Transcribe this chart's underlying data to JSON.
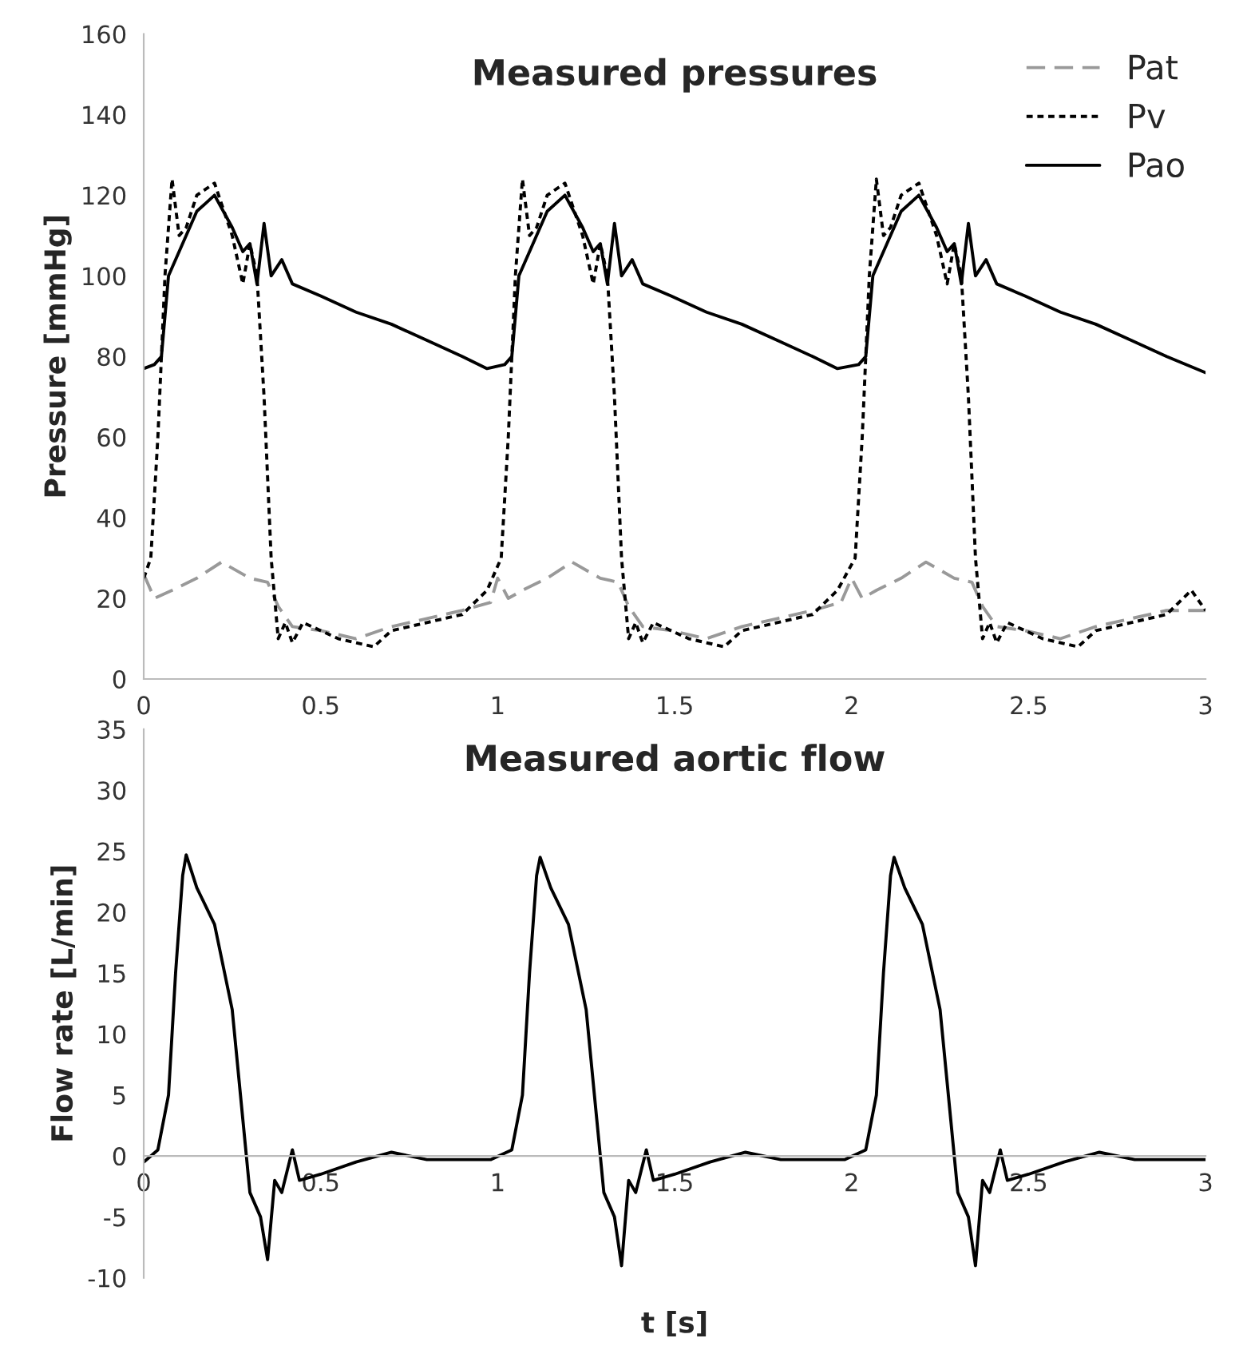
{
  "chart_data": [
    {
      "type": "line",
      "title": "Measured pressures",
      "ylabel": "Pressure [mmHg]",
      "xlim": [
        0,
        3
      ],
      "xticks": [
        0,
        0.5,
        1,
        1.5,
        2,
        2.5,
        3
      ],
      "ylim": [
        0,
        160
      ],
      "yticks": [
        0,
        20,
        40,
        60,
        80,
        100,
        120,
        140,
        160
      ],
      "grid": false,
      "legend": "top right",
      "series": [
        {
          "name": "Pat",
          "color": "#999999",
          "line_style": "dashed",
          "x": [
            0,
            0.03,
            0.08,
            0.15,
            0.22,
            0.3,
            0.35,
            0.38,
            0.42,
            0.5,
            0.6,
            0.7,
            0.8,
            0.9,
            0.98,
            1.0,
            1.03,
            1.07,
            1.14,
            1.21,
            1.29,
            1.34,
            1.37,
            1.41,
            1.49,
            1.59,
            1.69,
            1.79,
            1.89,
            1.97,
            2.0,
            2.03,
            2.07,
            2.14,
            2.21,
            2.29,
            2.34,
            2.37,
            2.41,
            2.49,
            2.59,
            2.69,
            2.79,
            2.89,
            3.0
          ],
          "values": [
            26,
            20,
            22,
            25,
            29,
            25,
            24,
            18,
            13,
            12,
            10,
            13,
            15,
            17,
            19,
            25,
            20,
            22,
            25,
            29,
            25,
            24,
            18,
            13,
            12,
            10,
            13,
            15,
            17,
            19,
            25,
            20,
            22,
            25,
            29,
            25,
            24,
            18,
            13,
            12,
            10,
            13,
            15,
            17,
            17
          ]
        },
        {
          "name": "Pv",
          "color": "#000000",
          "line_style": "dotted",
          "x": [
            0,
            0.02,
            0.04,
            0.06,
            0.08,
            0.1,
            0.12,
            0.15,
            0.2,
            0.25,
            0.28,
            0.3,
            0.32,
            0.34,
            0.36,
            0.38,
            0.4,
            0.42,
            0.45,
            0.5,
            0.55,
            0.65,
            0.7,
            0.8,
            0.9,
            0.97,
            1.01,
            1.03,
            1.05,
            1.07,
            1.09,
            1.11,
            1.14,
            1.19,
            1.24,
            1.27,
            1.29,
            1.31,
            1.33,
            1.35,
            1.37,
            1.39,
            1.41,
            1.44,
            1.49,
            1.54,
            1.64,
            1.69,
            1.79,
            1.89,
            1.96,
            2.01,
            2.03,
            2.05,
            2.07,
            2.09,
            2.11,
            2.14,
            2.19,
            2.24,
            2.27,
            2.29,
            2.31,
            2.33,
            2.35,
            2.37,
            2.39,
            2.41,
            2.44,
            2.49,
            2.54,
            2.64,
            2.69,
            2.79,
            2.89,
            2.96,
            3.0
          ],
          "values": [
            25,
            30,
            60,
            100,
            124,
            110,
            112,
            120,
            123,
            110,
            98,
            108,
            100,
            70,
            30,
            10,
            14,
            9,
            14,
            12,
            10,
            8,
            12,
            14,
            16,
            22,
            30,
            60,
            100,
            124,
            110,
            112,
            120,
            123,
            110,
            98,
            108,
            100,
            70,
            30,
            10,
            14,
            9,
            14,
            12,
            10,
            8,
            12,
            14,
            16,
            22,
            30,
            60,
            100,
            124,
            110,
            112,
            120,
            123,
            110,
            98,
            108,
            100,
            70,
            30,
            10,
            14,
            9,
            14,
            12,
            10,
            8,
            12,
            14,
            16,
            22,
            17
          ]
        },
        {
          "name": "Pao",
          "color": "#000000",
          "line_style": "solid",
          "x": [
            0,
            0.03,
            0.05,
            0.07,
            0.1,
            0.15,
            0.2,
            0.25,
            0.28,
            0.3,
            0.32,
            0.34,
            0.36,
            0.39,
            0.42,
            0.5,
            0.6,
            0.7,
            0.8,
            0.9,
            0.97,
            1.02,
            1.04,
            1.06,
            1.09,
            1.14,
            1.19,
            1.24,
            1.27,
            1.29,
            1.31,
            1.33,
            1.35,
            1.38,
            1.41,
            1.49,
            1.59,
            1.69,
            1.79,
            1.89,
            1.96,
            2.02,
            2.04,
            2.06,
            2.09,
            2.14,
            2.19,
            2.24,
            2.27,
            2.29,
            2.31,
            2.33,
            2.35,
            2.38,
            2.41,
            2.49,
            2.59,
            2.69,
            2.79,
            2.89,
            3.0
          ],
          "values": [
            77,
            78,
            80,
            100,
            106,
            116,
            120,
            112,
            106,
            108,
            98,
            113,
            100,
            104,
            98,
            95,
            91,
            88,
            84,
            80,
            77,
            78,
            80,
            100,
            106,
            116,
            120,
            112,
            106,
            108,
            98,
            113,
            100,
            104,
            98,
            95,
            91,
            88,
            84,
            80,
            77,
            78,
            80,
            100,
            106,
            116,
            120,
            112,
            106,
            108,
            98,
            113,
            100,
            104,
            98,
            95,
            91,
            88,
            84,
            80,
            76
          ]
        }
      ]
    },
    {
      "type": "line",
      "title": "Measured aortic flow",
      "xlabel": "t [s]",
      "ylabel": "Flow rate [L/min]",
      "xlim": [
        0,
        3
      ],
      "xticks": [
        0,
        0.5,
        1,
        1.5,
        2,
        2.5,
        3
      ],
      "ylim": [
        -10,
        35
      ],
      "yticks": [
        -10,
        -5,
        0,
        5,
        10,
        15,
        20,
        25,
        30,
        35
      ],
      "grid": false,
      "series": [
        {
          "color": "#000000",
          "line_style": "solid",
          "x": [
            0,
            0.04,
            0.07,
            0.09,
            0.11,
            0.12,
            0.15,
            0.2,
            0.25,
            0.28,
            0.3,
            0.33,
            0.35,
            0.37,
            0.39,
            0.42,
            0.44,
            0.5,
            0.6,
            0.7,
            0.8,
            0.9,
            0.98,
            1.04,
            1.07,
            1.09,
            1.11,
            1.12,
            1.15,
            1.2,
            1.25,
            1.28,
            1.3,
            1.33,
            1.35,
            1.37,
            1.39,
            1.42,
            1.44,
            1.5,
            1.6,
            1.7,
            1.8,
            1.9,
            1.98,
            2.04,
            2.07,
            2.09,
            2.11,
            2.12,
            2.15,
            2.2,
            2.25,
            2.28,
            2.3,
            2.33,
            2.35,
            2.37,
            2.39,
            2.42,
            2.44,
            2.5,
            2.6,
            2.7,
            2.8,
            2.9,
            3.0
          ],
          "values": [
            -0.5,
            0.5,
            5,
            15,
            23,
            24.7,
            22,
            19,
            12,
            3,
            -3,
            -5,
            -8.5,
            -2,
            -3,
            0.5,
            -2,
            -1.5,
            -0.5,
            0.3,
            -0.3,
            -0.3,
            -0.3,
            0.5,
            5,
            15,
            23,
            24.5,
            22,
            19,
            12,
            3,
            -3,
            -5,
            -9,
            -2,
            -3,
            0.5,
            -2,
            -1.5,
            -0.5,
            0.3,
            -0.3,
            -0.3,
            -0.3,
            0.5,
            5,
            15,
            23,
            24.5,
            22,
            19,
            12,
            3,
            -3,
            -5,
            -9,
            -2,
            -3,
            0.5,
            -2,
            -1.5,
            -0.5,
            0.3,
            -0.3,
            -0.3,
            -0.3
          ]
        }
      ]
    }
  ]
}
